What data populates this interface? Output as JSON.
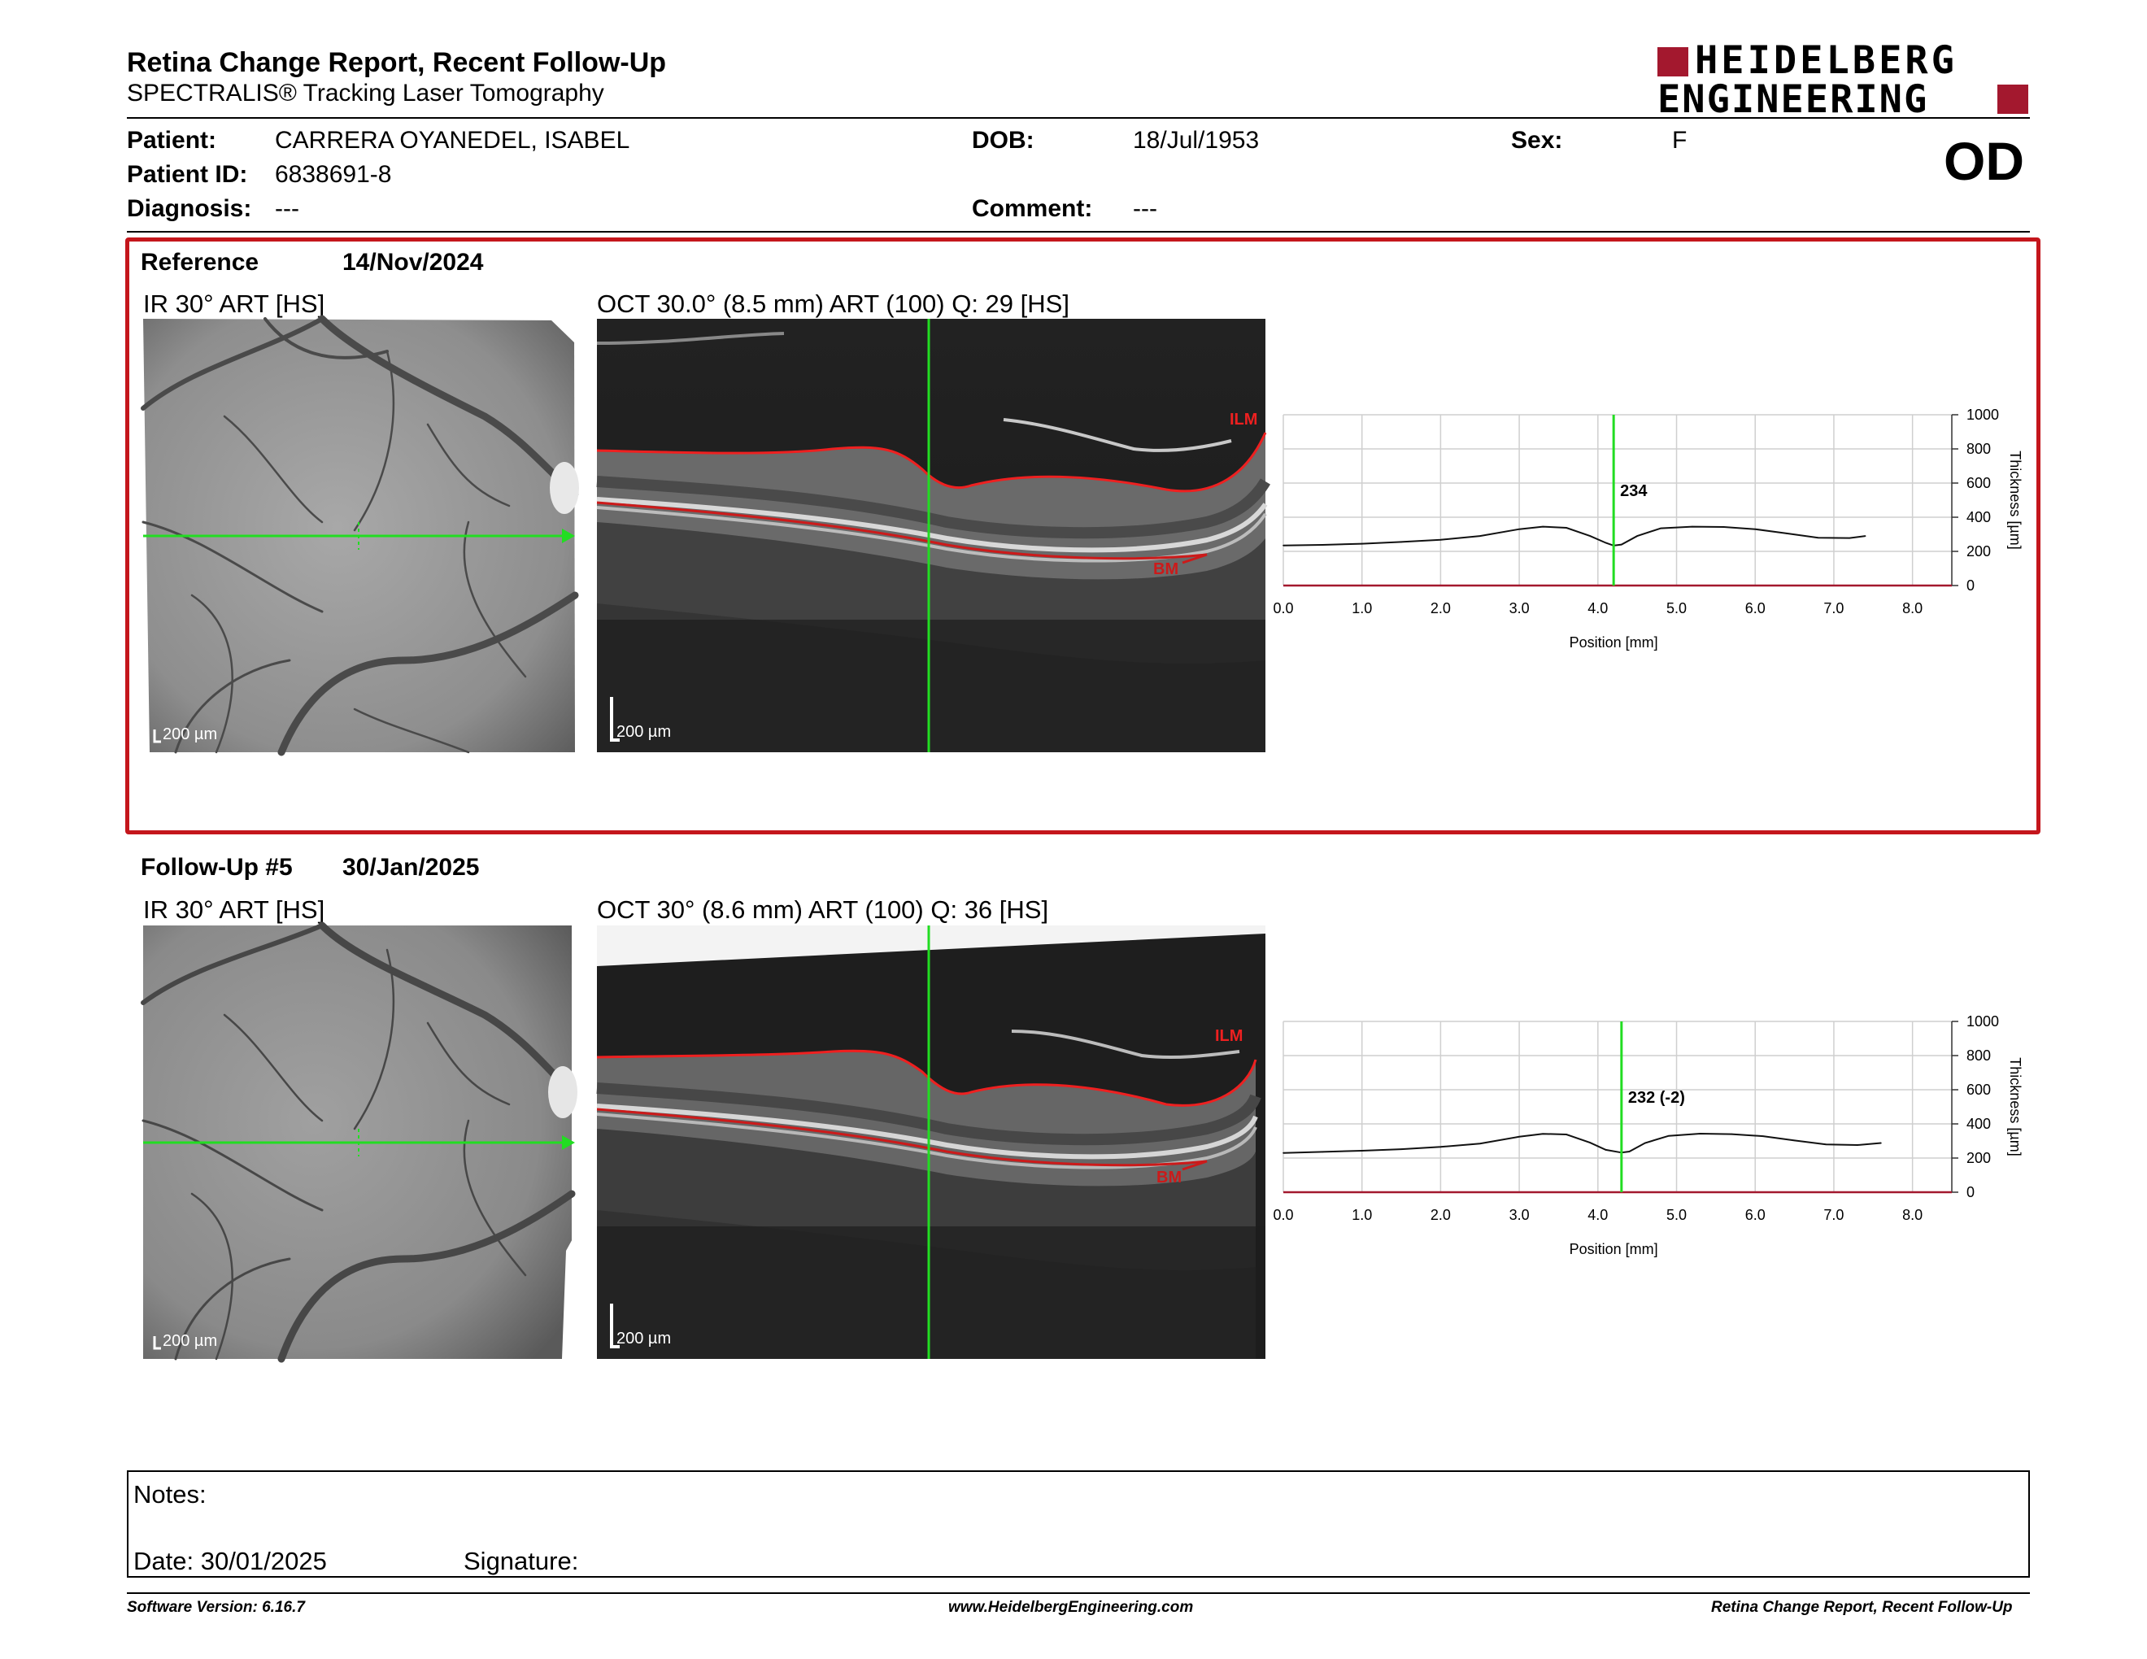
{
  "header": {
    "title": "Retina Change Report, Recent Follow-Up",
    "subtitle": "SPECTRALIS® Tracking Laser Tomography",
    "logo_line1": "HEIDELBERG",
    "logo_line2": "ENGINEERING",
    "eye": "OD"
  },
  "patient": {
    "patient_label": "Patient:",
    "patient_value": "CARRERA OYANEDEL, ISABEL",
    "id_label": "Patient ID:",
    "id_value": "6838691-8",
    "diagnosis_label": "Diagnosis:",
    "diagnosis_value": "---",
    "dob_label": "DOB:",
    "dob_value": "18/Jul/1953",
    "comment_label": "Comment:",
    "comment_value": "---",
    "sex_label": "Sex:",
    "sex_value": "F"
  },
  "reference": {
    "label": "Reference",
    "date": "14/Nov/2024",
    "ir_title": "IR 30° ART [HS]",
    "oct_title": "OCT 30.0° (8.5 mm) ART (100) Q: 29 [HS]",
    "ir_scale": "200 µm",
    "oct_scale": "200 µm",
    "ilm": "ILM",
    "bm": "BM"
  },
  "followup": {
    "label": "Follow-Up #5",
    "date": "30/Jan/2025",
    "ir_title": "IR 30° ART [HS]",
    "oct_title": "OCT 30° (8.6 mm) ART (100) Q: 36 [HS]",
    "ir_scale": "200 µm",
    "oct_scale": "200 µm",
    "ilm": "ILM",
    "bm": "BM"
  },
  "chart_data": [
    {
      "type": "line",
      "xlabel": "Position [mm]",
      "ylabel": "Thickness [µm]",
      "xlim": [
        0,
        8.5
      ],
      "ylim": [
        0,
        1000
      ],
      "x_ticks": [
        "0.0",
        "1.0",
        "2.0",
        "3.0",
        "4.0",
        "5.0",
        "6.0",
        "7.0",
        "8.0"
      ],
      "y_ticks": [
        "0",
        "200",
        "400",
        "600",
        "800",
        "1000"
      ],
      "grid": true,
      "marker_x": 4.2,
      "marker_label": "234",
      "series": [
        {
          "x": [
            0,
            0.5,
            1,
            1.5,
            2,
            2.5,
            3,
            3.3,
            3.6,
            3.9,
            4.1,
            4.2,
            4.3,
            4.5,
            4.8,
            5.2,
            5.6,
            6,
            6.4,
            6.8,
            7.2,
            7.4
          ],
          "y": [
            235,
            238,
            245,
            255,
            268,
            290,
            330,
            345,
            338,
            290,
            250,
            234,
            240,
            290,
            335,
            345,
            343,
            330,
            305,
            280,
            278,
            290
          ]
        }
      ]
    },
    {
      "type": "line",
      "xlabel": "Position [mm]",
      "ylabel": "Thickness [µm]",
      "xlim": [
        0,
        8.5
      ],
      "ylim": [
        0,
        1000
      ],
      "x_ticks": [
        "0.0",
        "1.0",
        "2.0",
        "3.0",
        "4.0",
        "5.0",
        "6.0",
        "7.0",
        "8.0"
      ],
      "y_ticks": [
        "0",
        "200",
        "400",
        "600",
        "800",
        "1000"
      ],
      "grid": true,
      "marker_x": 4.3,
      "marker_label": "232 (-2)",
      "series": [
        {
          "x": [
            0,
            0.5,
            1,
            1.5,
            2,
            2.5,
            3,
            3.3,
            3.6,
            3.9,
            4.1,
            4.3,
            4.4,
            4.6,
            4.9,
            5.3,
            5.7,
            6.1,
            6.5,
            6.9,
            7.3,
            7.6
          ],
          "y": [
            230,
            236,
            243,
            252,
            265,
            285,
            325,
            342,
            338,
            290,
            248,
            232,
            238,
            288,
            330,
            343,
            340,
            328,
            303,
            280,
            276,
            288
          ]
        }
      ]
    }
  ],
  "notes": {
    "notes_label": "Notes:",
    "date_label": "Date: 30/01/2025",
    "signature_label": "Signature:"
  },
  "footer": {
    "version": "Software Version: 6.16.7",
    "website": "www.HeidelbergEngineering.com",
    "report_name": "Retina Change Report, Recent Follow-Up"
  },
  "colors": {
    "brand_red": "#a3182e",
    "section_border": "#c4161c",
    "scan_line": "#22dd22",
    "ilm_line": "#ee2020",
    "bm_line": "#cc1a1a"
  }
}
